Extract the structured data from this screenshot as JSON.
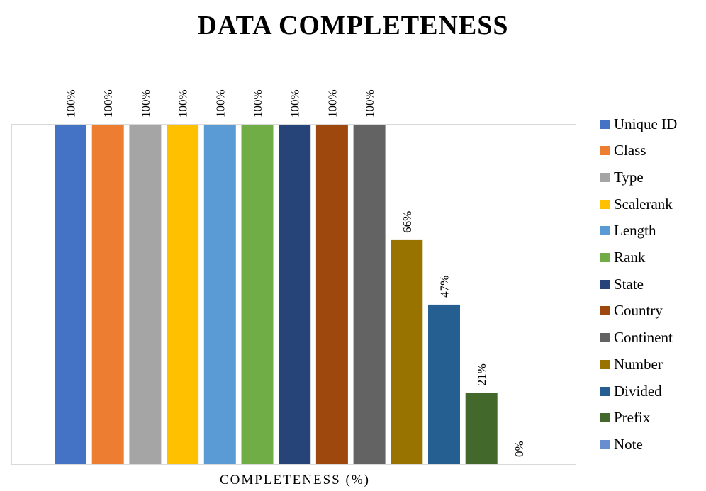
{
  "chart_data": {
    "type": "bar",
    "title": "DATA COMPLETENESS",
    "xlabel": "COMPLETENESS (%)",
    "ylabel": "",
    "ylim": [
      0,
      100
    ],
    "grid": false,
    "legend_position": "right",
    "categories": [
      "Unique ID",
      "Class",
      "Type",
      "Scalerank",
      "Length",
      "Rank",
      "State",
      "Country",
      "Continent",
      "Number",
      "Divided",
      "Prefix",
      "Note"
    ],
    "values": [
      100,
      100,
      100,
      100,
      100,
      100,
      100,
      100,
      100,
      66,
      47,
      21,
      0
    ],
    "data_labels": [
      "100%",
      "100%",
      "100%",
      "100%",
      "100%",
      "100%",
      "100%",
      "100%",
      "100%",
      "66%",
      "47%",
      "21%",
      "0%"
    ],
    "colors": [
      "#4472c4",
      "#ed7d31",
      "#a5a5a5",
      "#ffc000",
      "#5b9bd5",
      "#70ad47",
      "#264478",
      "#9e480e",
      "#636363",
      "#997300",
      "#255e91",
      "#43682b",
      "#698ed0"
    ]
  }
}
